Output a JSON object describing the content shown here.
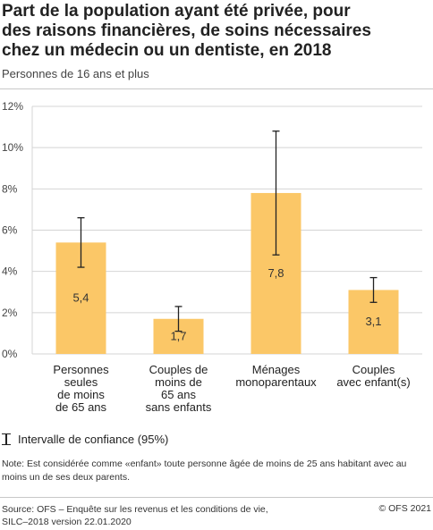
{
  "title": "Part de la population ayant été privée, pour\ndes raisons financières, de soins nécessaires\nchez un médecin ou un dentiste, en 2018",
  "subtitle": "Personnes de 16 ans et plus",
  "legend_label": "Intervalle de confiance (95%)",
  "note": "Note: Est considérée comme «enfant» toute personne âgée de moins de 25 ans habitant avec au moins un de ses deux parents.",
  "source": "Source: OFS – Enquête sur les revenus et les conditions de vie,\nSILC–2018 version 22.01.2020",
  "copyright": "© OFS 2021",
  "colors": {
    "bar": "#fbc767",
    "grid": "#d4d4d4",
    "error_bar": "#222222"
  },
  "chart_data": {
    "type": "bar",
    "categories": [
      [
        "Personnes",
        "seules",
        "de moins",
        "de 65 ans"
      ],
      [
        "Couples de",
        "moins de",
        "65 ans",
        "sans enfants"
      ],
      [
        "Ménages",
        "monoparentaux"
      ],
      [
        "Couples",
        "avec enfant(s)"
      ]
    ],
    "values": [
      5.4,
      1.7,
      7.8,
      3.1
    ],
    "value_labels": [
      "5,4",
      "1,7",
      "7,8",
      "3,1"
    ],
    "ci_low": [
      4.2,
      1.1,
      4.8,
      2.5
    ],
    "ci_high": [
      6.6,
      2.3,
      10.8,
      3.7
    ],
    "ylim": [
      0,
      12
    ],
    "yticks": [
      0,
      2,
      4,
      6,
      8,
      10,
      12
    ],
    "ytick_labels": [
      "0%",
      "2%",
      "4%",
      "6%",
      "8%",
      "10%",
      "12%"
    ],
    "grid": true,
    "xlabel": "",
    "ylabel": ""
  }
}
